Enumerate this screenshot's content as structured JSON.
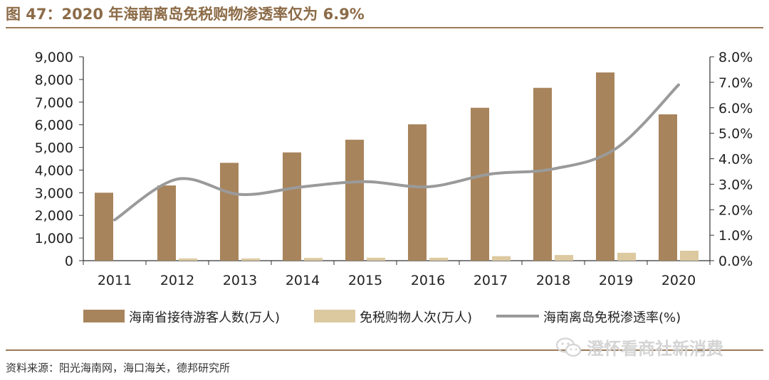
{
  "title": "图 47：2020 年海南离岛免税购物渗透率仅为 6.9%",
  "source": "资料来源：阳光海南网，海口海关，德邦研究所",
  "watermark": {
    "text": "澄怀看商社新消费",
    "icon": "wechat-icon"
  },
  "colors": {
    "bar1": "#a8845c",
    "bar2": "#dcc9a0",
    "line": "#9a9a9a",
    "accent": "#8c6b47"
  },
  "chart_data": {
    "type": "bar",
    "categories": [
      "2011",
      "2012",
      "2013",
      "2014",
      "2015",
      "2016",
      "2017",
      "2018",
      "2019",
      "2020"
    ],
    "series": [
      {
        "name": "海南省接待游客人数(万人)",
        "type": "bar",
        "axis": "left",
        "values": [
          3000,
          3320,
          4320,
          4780,
          5340,
          6020,
          6750,
          7630,
          8310,
          6460
        ]
      },
      {
        "name": "免税购物人次(万人)",
        "type": "bar",
        "axis": "left",
        "values": [
          0,
          100,
          100,
          120,
          130,
          130,
          200,
          250,
          350,
          440
        ]
      },
      {
        "name": "海南离岛免税渗透率(%)",
        "type": "line",
        "axis": "right",
        "values": [
          1.6,
          3.2,
          2.6,
          2.9,
          3.1,
          2.9,
          3.4,
          3.6,
          4.4,
          6.9
        ]
      }
    ],
    "y_left": {
      "min": 0,
      "max": 9000,
      "ticks": [
        "0",
        "1,000",
        "2,000",
        "3,000",
        "4,000",
        "5,000",
        "6,000",
        "7,000",
        "8,000",
        "9,000"
      ]
    },
    "y_right": {
      "min": 0,
      "max": 8,
      "ticks": [
        "0.0%",
        "1.0%",
        "2.0%",
        "3.0%",
        "4.0%",
        "5.0%",
        "6.0%",
        "7.0%",
        "8.0%"
      ]
    },
    "legend_position": "bottom",
    "grid": false
  }
}
